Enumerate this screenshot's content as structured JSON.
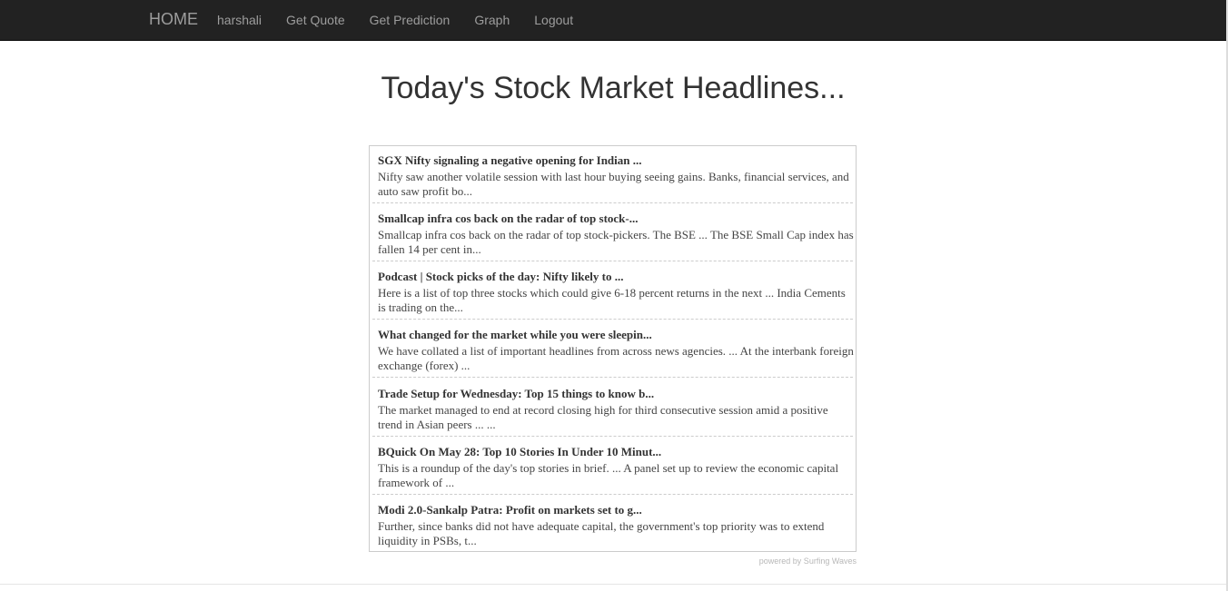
{
  "navbar": {
    "brand": "HOME",
    "links": [
      "harshali",
      "Get Quote",
      "Get Prediction",
      "Graph",
      "Logout"
    ]
  },
  "page": {
    "title": "Today's Stock Market Headlines..."
  },
  "feed": {
    "items": [
      {
        "headline": "SGX Nifty signaling a negative opening for Indian ...",
        "description": "Nifty saw another volatile session with last hour buying seeing gains. Banks, financial services, and auto saw profit bo..."
      },
      {
        "headline": "Smallcap infra cos back on the radar of top stock-...",
        "description": "Smallcap infra cos back on the radar of top stock-pickers. The BSE ... The BSE Small Cap index has fallen 14 per cent in..."
      },
      {
        "headline": "Podcast | Stock picks of the day: Nifty likely to ...",
        "description": "Here is a list of top three stocks which could give 6-18 percent returns in the next ... India Cements is trading on the..."
      },
      {
        "headline": "What changed for the market while you were sleepin...",
        "description": "We have collated a list of important headlines from across news agencies. ... At the interbank foreign exchange (forex) ..."
      },
      {
        "headline": "Trade Setup for Wednesday: Top 15 things to know b...",
        "description": "The market managed to end at record closing high for third consecutive session amid a positive trend in Asian peers ... ..."
      },
      {
        "headline": "BQuick On May 28: Top 10 Stories In Under 10 Minut...",
        "description": "This is a roundup of the day's top stories in brief. ... A panel set up to review the economic capital framework of ..."
      },
      {
        "headline": "Modi 2.0-Sankalp Patra: Profit on markets set to g...",
        "description": "Further, since banks did not have adequate capital, the government's top priority was to extend liquidity in PSBs, t..."
      }
    ],
    "powered_by": "powered by Surfing Waves"
  },
  "colors": {
    "navbar_bg": "#222222",
    "nav_text": "#9d9d9d",
    "title_text": "#333333",
    "feed_border": "#cccccc"
  }
}
